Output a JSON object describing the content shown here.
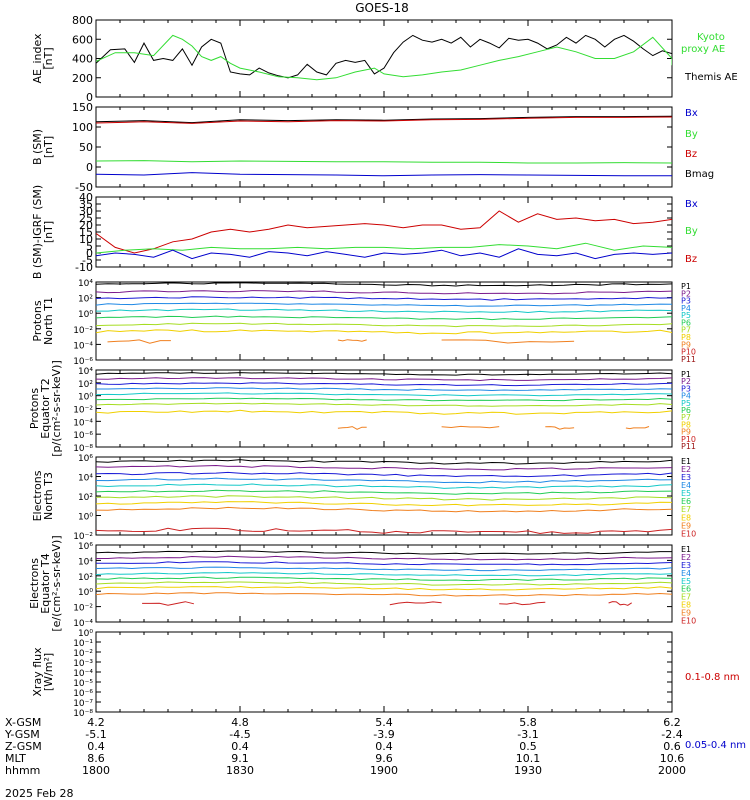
{
  "title": "GOES-18",
  "date_label": "2025 Feb 28",
  "footer_rows": [
    {
      "label": "X-GSM",
      "values": [
        "4.2",
        "4.8",
        "5.4",
        "5.8",
        "6.2"
      ]
    },
    {
      "label": "Y-GSM",
      "values": [
        "-5.1",
        "-4.5",
        "-3.9",
        "-3.1",
        "-2.4"
      ]
    },
    {
      "label": "Z-GSM",
      "values": [
        "0.4",
        "0.4",
        "0.4",
        "0.5",
        "0.6"
      ]
    },
    {
      "label": "MLT",
      "values": [
        "8.6",
        "9.1",
        "9.6",
        "10.1",
        "10.6"
      ]
    },
    {
      "label": "hhmm",
      "values": [
        "1800",
        "1830",
        "1900",
        "1930",
        "2000"
      ]
    }
  ],
  "colors": {
    "black": "#000000",
    "red": "#cc0000",
    "green": "#33dd33",
    "blue": "#0000cc"
  },
  "chart_data": [
    {
      "id": "ae",
      "type": "line",
      "ylabel": [
        "AE_index",
        "[nT]"
      ],
      "ylim": [
        0,
        800
      ],
      "yscale": "linear",
      "yticks": [
        "0",
        "200",
        "400",
        "600",
        "800"
      ],
      "legend": [
        {
          "text": "Kyoto",
          "color": "#33dd33"
        },
        {
          "text": "proxy AE",
          "color": "#33dd33"
        },
        {
          "text": "Themis AE",
          "color": "#000000"
        }
      ],
      "x_unit": "hhmm",
      "xlim": [
        1800,
        2000
      ],
      "series": [
        {
          "name": "Themis AE",
          "color": "#000000",
          "x": [
            1800,
            1803,
            1806,
            1808,
            1810,
            1812,
            1814,
            1816,
            1818,
            1820,
            1822,
            1824,
            1826,
            1828,
            1830,
            1832,
            1834,
            1836,
            1838,
            1840,
            1842,
            1844,
            1846,
            1848,
            1850,
            1852,
            1854,
            1856,
            1858,
            1900,
            1902,
            1904,
            1906,
            1908,
            1910,
            1912,
            1914,
            1916,
            1918,
            1920,
            1922,
            1924,
            1926,
            1928,
            1930,
            1932,
            1934,
            1936,
            1938,
            1940,
            1942,
            1944,
            1946,
            1948,
            1950,
            1952,
            1954,
            1956,
            1958,
            2000
          ],
          "y": [
            350,
            490,
            500,
            360,
            560,
            380,
            400,
            380,
            500,
            330,
            520,
            600,
            560,
            260,
            240,
            230,
            300,
            250,
            220,
            200,
            230,
            340,
            260,
            230,
            350,
            380,
            360,
            380,
            240,
            300,
            460,
            570,
            640,
            590,
            570,
            600,
            560,
            620,
            520,
            600,
            560,
            510,
            610,
            590,
            600,
            560,
            500,
            540,
            620,
            560,
            640,
            600,
            520,
            600,
            640,
            580,
            500,
            430,
            480,
            450
          ]
        },
        {
          "name": "Kyoto proxy AE",
          "color": "#33dd33",
          "x": [
            1800,
            1804,
            1808,
            1812,
            1816,
            1818,
            1820,
            1822,
            1824,
            1826,
            1828,
            1830,
            1834,
            1838,
            1842,
            1846,
            1850,
            1854,
            1858,
            1900,
            1904,
            1908,
            1912,
            1916,
            1920,
            1924,
            1928,
            1932,
            1936,
            1940,
            1944,
            1948,
            1952,
            1956,
            1960,
            2000
          ],
          "y": [
            370,
            460,
            460,
            430,
            640,
            600,
            530,
            420,
            380,
            420,
            350,
            300,
            260,
            210,
            200,
            180,
            200,
            260,
            300,
            240,
            210,
            230,
            260,
            280,
            330,
            380,
            420,
            470,
            520,
            470,
            400,
            400,
            470,
            620,
            400,
            330
          ]
        }
      ]
    },
    {
      "id": "b_sm",
      "type": "line",
      "ylabel": [
        "B (SM)",
        "[nT]"
      ],
      "ylim": [
        -50,
        150
      ],
      "yscale": "linear",
      "yticks": [
        "-50",
        "0",
        "50",
        "100",
        "150"
      ],
      "legend": [
        {
          "text": "Bx",
          "color": "#0000cc"
        },
        {
          "text": "By",
          "color": "#33dd33"
        },
        {
          "text": "Bz",
          "color": "#cc0000"
        },
        {
          "text": "Bmag",
          "color": "#000000"
        }
      ],
      "x_unit": "hhmm",
      "xlim": [
        1800,
        2000
      ],
      "series": [
        {
          "name": "Bmag",
          "color": "#000000",
          "x": [
            1800,
            1810,
            1820,
            1830,
            1840,
            1850,
            1900,
            1910,
            1920,
            1930,
            1940,
            1950,
            2000
          ],
          "y": [
            113,
            116,
            111,
            118,
            116,
            118,
            117,
            120,
            121,
            124,
            126,
            126,
            127
          ]
        },
        {
          "name": "Bz",
          "color": "#cc0000",
          "x": [
            1800,
            1810,
            1820,
            1830,
            1840,
            1850,
            1900,
            1910,
            1920,
            1930,
            1940,
            1950,
            2000
          ],
          "y": [
            110,
            113,
            109,
            115,
            113,
            116,
            115,
            118,
            119,
            122,
            124,
            124,
            125
          ]
        },
        {
          "name": "By",
          "color": "#33dd33",
          "x": [
            1800,
            1810,
            1820,
            1830,
            1840,
            1850,
            1900,
            1910,
            1920,
            1930,
            1940,
            1950,
            2000
          ],
          "y": [
            15,
            16,
            13,
            15,
            14,
            13,
            13,
            12,
            12,
            10,
            10,
            11,
            10
          ]
        },
        {
          "name": "Bx",
          "color": "#0000cc",
          "x": [
            1800,
            1810,
            1820,
            1830,
            1840,
            1850,
            1900,
            1910,
            1920,
            1930,
            1940,
            1950,
            2000
          ],
          "y": [
            -18,
            -20,
            -14,
            -18,
            -19,
            -20,
            -22,
            -20,
            -19,
            -20,
            -21,
            -22,
            -22
          ]
        }
      ]
    },
    {
      "id": "b_igrf",
      "type": "line",
      "ylabel": [
        "B (SM)-IGRF (SM)",
        "[nT]"
      ],
      "ylim": [
        -10,
        40
      ],
      "yscale": "linear",
      "yticks": [
        "-10",
        "-5",
        "0",
        "5",
        "10",
        "15",
        "20",
        "25",
        "30",
        "35",
        "40"
      ],
      "legend": [
        {
          "text": "Bx",
          "color": "#0000cc"
        },
        {
          "text": "By",
          "color": "#33dd33"
        },
        {
          "text": "Bz",
          "color": "#cc0000"
        }
      ],
      "x_unit": "hhmm",
      "xlim": [
        1800,
        2000
      ],
      "series": [
        {
          "name": "Bz",
          "color": "#cc0000",
          "x": [
            1800,
            1804,
            1808,
            1812,
            1816,
            1820,
            1824,
            1828,
            1832,
            1836,
            1840,
            1844,
            1848,
            1852,
            1856,
            1900,
            1904,
            1908,
            1912,
            1916,
            1920,
            1924,
            1928,
            1932,
            1936,
            1940,
            1944,
            1948,
            1952,
            1956,
            2000
          ],
          "y": [
            14,
            4,
            0,
            3,
            8,
            10,
            15,
            17,
            15,
            17,
            20,
            18,
            19,
            20,
            21,
            20,
            18,
            20,
            20,
            17,
            18,
            30,
            22,
            28,
            24,
            25,
            23,
            24,
            21,
            22,
            24
          ]
        },
        {
          "name": "By",
          "color": "#33dd33",
          "x": [
            1800,
            1806,
            1812,
            1818,
            1824,
            1830,
            1836,
            1842,
            1848,
            1854,
            1900,
            1906,
            1912,
            1918,
            1924,
            1930,
            1936,
            1942,
            1948,
            1954,
            2000
          ],
          "y": [
            0,
            2,
            3,
            2,
            4,
            3,
            3,
            4,
            3,
            4,
            4,
            3,
            4,
            4,
            6,
            5,
            3,
            7,
            2,
            5,
            4
          ]
        },
        {
          "name": "Bx",
          "color": "#0000cc",
          "x": [
            1800,
            1804,
            1808,
            1812,
            1816,
            1820,
            1824,
            1828,
            1832,
            1836,
            1840,
            1844,
            1848,
            1852,
            1856,
            1900,
            1904,
            1908,
            1912,
            1916,
            1920,
            1924,
            1928,
            1932,
            1936,
            1940,
            1944,
            1948,
            1952,
            1956,
            2000
          ],
          "y": [
            -2,
            0,
            -1,
            -3,
            2,
            -4,
            0,
            -1,
            -3,
            1,
            0,
            -2,
            1,
            -1,
            -3,
            0,
            -1,
            0,
            2,
            -2,
            0,
            -3,
            3,
            -1,
            -2,
            0,
            -4,
            -1,
            0,
            -1,
            0
          ]
        }
      ]
    },
    {
      "id": "protons_t1",
      "type": "line",
      "ylabel": [
        "Protons",
        "North T1"
      ],
      "ylim": [
        -6,
        4
      ],
      "yscale": "log",
      "yticks": [
        "10^-6",
        "10^-4",
        "10^-2",
        "10^0",
        "10^2",
        "10^4"
      ],
      "channels": [
        {
          "name": "P1",
          "color": "#000000",
          "level": 3.7
        },
        {
          "name": "P2",
          "color": "#7a1a8c",
          "level": 2.7
        },
        {
          "name": "P3",
          "color": "#1a1ad6",
          "level": 1.9
        },
        {
          "name": "P4",
          "color": "#1e88e5",
          "level": 1.1
        },
        {
          "name": "P5",
          "color": "#14c8c8",
          "level": 0.3
        },
        {
          "name": "P6",
          "color": "#22cc55",
          "level": -0.6
        },
        {
          "name": "P7",
          "color": "#a6dd22",
          "level": -1.5
        },
        {
          "name": "P8",
          "color": "#f0d000",
          "level": -2.4
        },
        {
          "name": "P9",
          "color": "#f08020",
          "level": -3.6
        },
        {
          "name": "P10",
          "color": "#cc2222",
          "level": null
        },
        {
          "name": "P11",
          "color": "#991111",
          "level": null
        }
      ]
    },
    {
      "id": "protons_t2",
      "type": "line",
      "ylabel": [
        "Protons",
        "Equator T2",
        "[p/(cm²-s-sr-keV)]"
      ],
      "ylim": [
        -8,
        4
      ],
      "yscale": "log",
      "yticks": [
        "10^-8",
        "10^-6",
        "10^-4",
        "10^-2",
        "10^0",
        "10^2",
        "10^4"
      ],
      "channels": [
        {
          "name": "P1",
          "color": "#000000",
          "level": 3.4
        },
        {
          "name": "P2",
          "color": "#7a1a8c",
          "level": 2.6
        },
        {
          "name": "P3",
          "color": "#1a1ad6",
          "level": 1.8
        },
        {
          "name": "P4",
          "color": "#1e88e5",
          "level": 1.0
        },
        {
          "name": "P5",
          "color": "#14c8c8",
          "level": 0.2
        },
        {
          "name": "P6",
          "color": "#22cc55",
          "level": -0.6
        },
        {
          "name": "P7",
          "color": "#a6dd22",
          "level": -1.4
        },
        {
          "name": "P8",
          "color": "#f0d000",
          "level": -2.6
        },
        {
          "name": "P9",
          "color": "#f08020",
          "level": -5.0
        },
        {
          "name": "P10",
          "color": "#cc2222",
          "level": null
        },
        {
          "name": "P11",
          "color": "#991111",
          "level": null
        }
      ]
    },
    {
      "id": "electrons_t3",
      "type": "line",
      "ylabel": [
        "Electrons",
        "North T3"
      ],
      "ylim": [
        -2,
        6
      ],
      "yscale": "log",
      "yticks": [
        "10^-2",
        "10^0",
        "10^2",
        "10^4",
        "10^6"
      ],
      "channels": [
        {
          "name": "E1",
          "color": "#000000",
          "level": 5.5
        },
        {
          "name": "E2",
          "color": "#7a1a8c",
          "level": 4.9
        },
        {
          "name": "E3",
          "color": "#1a1ad6",
          "level": 4.2
        },
        {
          "name": "E4",
          "color": "#1e88e5",
          "level": 3.6
        },
        {
          "name": "E5",
          "color": "#14c8c8",
          "level": 3.0
        },
        {
          "name": "E6",
          "color": "#22cc55",
          "level": 2.4
        },
        {
          "name": "E7",
          "color": "#a6dd22",
          "level": 1.8
        },
        {
          "name": "E8",
          "color": "#f0d000",
          "level": 1.2
        },
        {
          "name": "E9",
          "color": "#f08020",
          "level": 0.6
        },
        {
          "name": "E10",
          "color": "#cc2222",
          "level": -1.6
        }
      ]
    },
    {
      "id": "electrons_t4",
      "type": "line",
      "ylabel": [
        "Electrons",
        "Equator T4",
        "[e/(cm²-s-sr-keV)]"
      ],
      "ylim": [
        -4,
        6
      ],
      "yscale": "log",
      "yticks": [
        "10^-4",
        "10^-2",
        "10^0",
        "10^2",
        "10^4",
        "10^6"
      ],
      "channels": [
        {
          "name": "E1",
          "color": "#000000",
          "level": 5.0
        },
        {
          "name": "E2",
          "color": "#7a1a8c",
          "level": 4.3
        },
        {
          "name": "E3",
          "color": "#1a1ad6",
          "level": 3.6
        },
        {
          "name": "E4",
          "color": "#1e88e5",
          "level": 2.9
        },
        {
          "name": "E5",
          "color": "#14c8c8",
          "level": 2.2
        },
        {
          "name": "E6",
          "color": "#22cc55",
          "level": 1.6
        },
        {
          "name": "E7",
          "color": "#a6dd22",
          "level": 1.0
        },
        {
          "name": "E8",
          "color": "#f0d000",
          "level": 0.4
        },
        {
          "name": "E9",
          "color": "#f08020",
          "level": -0.4
        },
        {
          "name": "E10",
          "color": "#cc2222",
          "level": -1.6
        }
      ]
    },
    {
      "id": "xray",
      "type": "line",
      "ylabel": [
        "Xray flux",
        "[W/m²]"
      ],
      "ylim": [
        -8,
        0
      ],
      "yscale": "log",
      "yticks": [
        "10^-8",
        "10^-7",
        "10^-6",
        "10^-5",
        "10^-4",
        "10^-3",
        "10^-2",
        "10^-1",
        "10^0"
      ],
      "legend": [
        {
          "text": "0.1-0.8 nm",
          "color": "#cc0000"
        },
        {
          "text": "0.05-0.4 nm",
          "color": "#0000cc"
        }
      ],
      "series": []
    }
  ]
}
